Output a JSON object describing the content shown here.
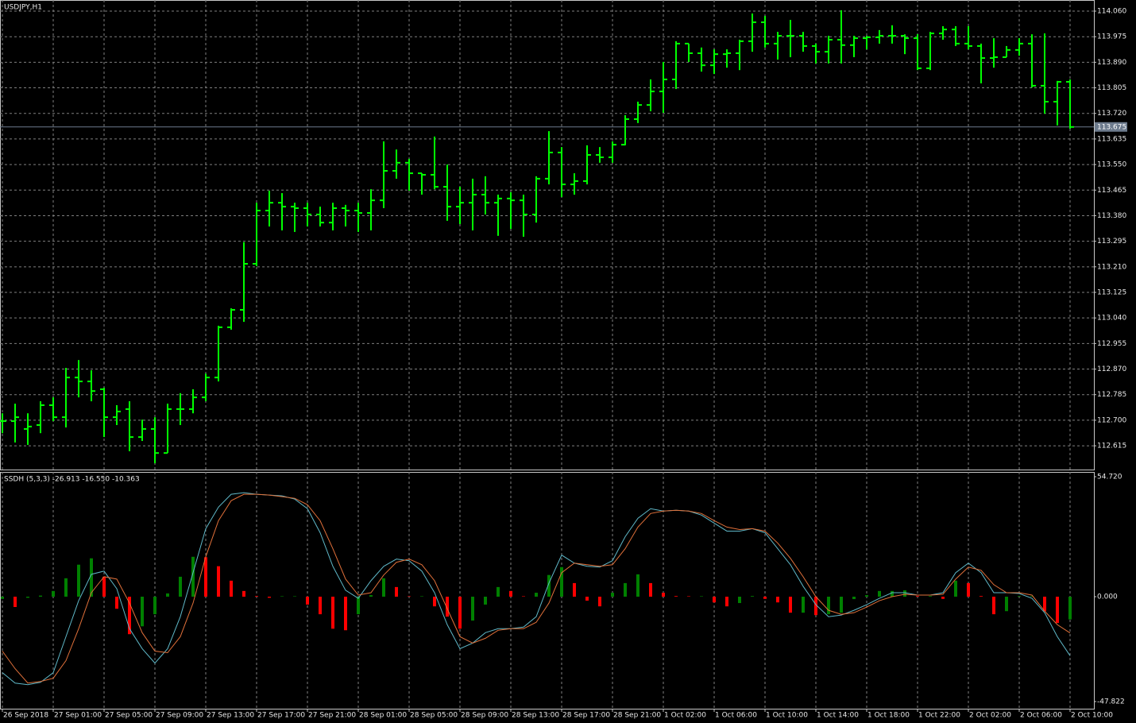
{
  "chart_data": [
    {
      "type": "ohlc",
      "title": "USDJPY,H1",
      "color": "#00ff00",
      "grid": true,
      "categories": [
        "26 Sep 2018",
        null,
        null,
        null,
        "27 Sep 01:00",
        null,
        null,
        null,
        "27 Sep 05:00",
        null,
        null,
        null,
        "27 Sep 09:00",
        null,
        null,
        null,
        "27 Sep 13:00",
        null,
        null,
        null,
        "27 Sep 17:00",
        null,
        null,
        null,
        "27 Sep 21:00",
        null,
        null,
        null,
        "28 Sep 01:00",
        null,
        null,
        null,
        "28 Sep 05:00",
        null,
        null,
        null,
        "28 Sep 09:00",
        null,
        null,
        null,
        "28 Sep 13:00",
        null,
        null,
        null,
        "28 Sep 17:00",
        null,
        null,
        null,
        "28 Sep 21:00",
        null,
        null,
        null,
        "1 Oct 02:00",
        null,
        null,
        null,
        "1 Oct 06:00",
        null,
        null,
        null,
        "1 Oct 10:00",
        null,
        null,
        null,
        "1 Oct 14:00",
        null,
        null,
        null,
        "1 Oct 18:00",
        null,
        null,
        null,
        "1 Oct 22:00",
        null,
        null,
        null,
        "2 Oct 02:00",
        null,
        null,
        null,
        "2 Oct 06:00",
        null,
        null,
        null,
        "2 Oct 10:00"
      ],
      "open": [
        112.697,
        112.697,
        112.671,
        112.684,
        112.75,
        112.71,
        112.842,
        112.829,
        112.803,
        112.71,
        112.737,
        112.644,
        112.671,
        112.591,
        112.737,
        112.737,
        112.776,
        112.842,
        113.009,
        113.067,
        113.22,
        113.397,
        113.423,
        113.41,
        113.405,
        113.384,
        113.357,
        113.405,
        113.397,
        113.389,
        113.431,
        113.529,
        113.556,
        113.521,
        113.516,
        113.476,
        113.41,
        113.423,
        113.45,
        113.423,
        113.437,
        113.431,
        113.384,
        113.503,
        113.59,
        113.484,
        113.495,
        113.582,
        113.574,
        113.616,
        113.701,
        113.748,
        113.793,
        113.833,
        113.952,
        113.92,
        113.88,
        113.917,
        113.92,
        113.96,
        114.023,
        113.952,
        113.978,
        113.978,
        113.944,
        113.925,
        113.965,
        113.947,
        113.97,
        113.973,
        113.978,
        113.978,
        113.97,
        113.87,
        113.986,
        113.999,
        113.952,
        113.944,
        113.904,
        113.907,
        113.931,
        113.952,
        113.812,
        113.759,
        113.825
      ],
      "high": [
        112.723,
        112.755,
        112.723,
        112.763,
        112.776,
        112.874,
        112.9,
        112.866,
        112.808,
        112.75,
        112.763,
        112.702,
        112.71,
        112.755,
        112.79,
        112.803,
        112.855,
        113.014,
        113.072,
        113.292,
        113.423,
        113.463,
        113.455,
        113.423,
        113.423,
        113.41,
        113.423,
        113.416,
        113.423,
        113.468,
        113.627,
        113.6,
        113.569,
        113.521,
        113.643,
        113.55,
        113.476,
        113.503,
        113.511,
        113.45,
        113.458,
        113.45,
        113.511,
        113.661,
        113.608,
        113.521,
        113.614,
        113.608,
        113.627,
        113.714,
        113.759,
        113.833,
        113.891,
        113.96,
        113.952,
        113.939,
        113.933,
        113.933,
        113.965,
        114.052,
        114.044,
        113.991,
        114.031,
        113.991,
        113.952,
        113.978,
        114.063,
        113.978,
        113.978,
        113.997,
        114.013,
        113.983,
        113.983,
        113.991,
        114.01,
        114.01,
        114.01,
        113.952,
        113.97,
        113.944,
        113.97,
        113.983,
        113.986,
        113.828,
        113.833
      ],
      "low": [
        112.657,
        112.626,
        112.618,
        112.657,
        112.697,
        112.676,
        112.776,
        112.763,
        112.644,
        112.684,
        112.597,
        112.631,
        112.557,
        112.591,
        112.684,
        112.723,
        112.763,
        112.829,
        113.001,
        113.027,
        113.212,
        113.344,
        113.331,
        113.326,
        113.344,
        113.344,
        113.331,
        113.344,
        113.326,
        113.331,
        113.405,
        113.503,
        113.463,
        113.45,
        113.468,
        113.363,
        113.352,
        113.331,
        113.384,
        113.313,
        113.336,
        113.31,
        113.357,
        113.484,
        113.442,
        113.45,
        113.484,
        113.556,
        113.556,
        113.614,
        113.688,
        113.727,
        113.722,
        113.801,
        113.891,
        113.859,
        113.851,
        113.872,
        113.864,
        113.925,
        113.939,
        113.899,
        113.907,
        113.925,
        113.886,
        113.886,
        113.886,
        113.907,
        113.933,
        113.952,
        113.952,
        113.917,
        113.864,
        113.864,
        113.965,
        113.944,
        113.933,
        113.82,
        113.872,
        113.907,
        113.912,
        113.806,
        113.719,
        113.68,
        113.669
      ],
      "close": [
        112.697,
        112.71,
        112.679,
        112.75,
        112.71,
        112.842,
        112.829,
        112.797,
        112.71,
        112.729,
        112.644,
        112.671,
        112.591,
        112.737,
        112.737,
        112.776,
        112.842,
        113.009,
        113.067,
        113.22,
        113.397,
        113.423,
        113.41,
        113.405,
        113.384,
        113.357,
        113.405,
        113.397,
        113.389,
        113.431,
        113.529,
        113.556,
        113.521,
        113.516,
        113.476,
        113.41,
        113.423,
        113.45,
        113.423,
        113.437,
        113.431,
        113.384,
        113.503,
        113.59,
        113.484,
        113.495,
        113.582,
        113.574,
        113.616,
        113.701,
        113.748,
        113.793,
        113.833,
        113.952,
        113.92,
        113.88,
        113.917,
        113.92,
        113.96,
        114.023,
        113.952,
        113.978,
        113.978,
        113.944,
        113.925,
        113.965,
        113.947,
        113.97,
        113.973,
        113.978,
        113.978,
        113.97,
        113.87,
        113.986,
        113.999,
        113.952,
        113.944,
        113.904,
        113.907,
        113.931,
        113.952,
        113.812,
        113.759,
        113.825,
        113.675
      ],
      "current_price": 113.675,
      "current_price_color": "#6d7b8d",
      "ylim": [
        112.536,
        114.097
      ],
      "yticks": [
        {
          "value": 114.06,
          "label": "114.060"
        },
        113.975,
        {
          "value": 113.89,
          "label": "113.890"
        },
        113.805,
        {
          "value": 113.72,
          "label": "113.720"
        },
        113.635,
        {
          "value": 113.55,
          "label": "113.550"
        },
        113.465,
        {
          "value": 113.38,
          "label": "113.380"
        },
        113.295,
        {
          "value": 113.21,
          "label": "113.210"
        },
        113.125,
        {
          "value": 113.04,
          "label": "113.040"
        },
        112.955,
        {
          "value": 112.87,
          "label": "112.870"
        },
        112.785,
        {
          "value": 112.7,
          "label": "112.700"
        },
        112.615
      ]
    },
    {
      "type": "oscillator",
      "title": "SSDH (5,3,3) -26.913 -16.550 -10.363",
      "histogram": {
        "up_color": "#008000",
        "down_color": "#ff0000",
        "values": [
          -1,
          -4.7,
          -0.5,
          0.5,
          2.6,
          8.4,
          14.6,
          17.5,
          9.1,
          -5.5,
          -17.1,
          -13.5,
          -8.0,
          1.5,
          9.1,
          18.2,
          18.0,
          13.9,
          7.3,
          2.6,
          0.3,
          -0.5,
          0.2,
          0.2,
          -3.6,
          -8.0,
          -14.6,
          -15.3,
          -8.0,
          0.7,
          8.4,
          4.4,
          0.2,
          0.2,
          -4.4,
          -9.1,
          -14.6,
          -10.9,
          -3.6,
          4.4,
          2.6,
          0.2,
          1.8,
          9.9,
          13.5,
          6.2,
          -1.8,
          -4.4,
          1.8,
          6.2,
          10.2,
          6.2,
          1.8,
          0.3,
          0.2,
          0.2,
          -2.6,
          -4.4,
          -2.9,
          0.3,
          -1.0,
          -2.6,
          -7.3,
          -7.3,
          -8.4,
          -8.0,
          -7.3,
          -1.1,
          0.7,
          2.6,
          2.6,
          2.9,
          0.3,
          0.3,
          -1.0,
          7.3,
          6.2,
          0.3,
          -8.0,
          -6.6,
          0.3,
          0.3,
          -6.6,
          -12.0,
          -10.363
        ]
      },
      "series": [
        {
          "color": "#5fb8c8",
          "values": [
            -34.66,
            -39.4,
            -40.13,
            -39.03,
            -34.66,
            -18.24,
            -1.82,
            10.21,
            11.67,
            3.65,
            -14.59,
            -23.71,
            -30.28,
            -23.71,
            -9.12,
            10.94,
            31.01,
            40.86,
            46.69,
            47.42,
            46.69,
            46.33,
            45.96,
            44.51,
            40.13,
            29.18,
            13.86,
            2.92,
            -0.73,
            7.3,
            13.86,
            17.15,
            16.42,
            11.67,
            1.82,
            -12.77,
            -23.71,
            -21.16,
            -16.42,
            -14.59,
            -14.59,
            -13.86,
            -9.12,
            6.2,
            18.97,
            15.32,
            13.86,
            13.5,
            16.42,
            27.36,
            35.75,
            40.13,
            39.03,
            39.4,
            39.03,
            37.21,
            33.56,
            29.91,
            29.91,
            31.01,
            29.18,
            21.89,
            14.59,
            4.74,
            -3.65,
            -9.12,
            -8.39,
            -6.2,
            -3.65,
            -0.73,
            1.82,
            1.82,
            0.73,
            0.73,
            1.82,
            10.94,
            15.32,
            10.94,
            1.82,
            1.82,
            1.46,
            -0.73,
            -7.3,
            -18.24,
            -26.913
          ]
        },
        {
          "color": "#e0703a",
          "values": [
            -24.81,
            -32.83,
            -39.4,
            -38.67,
            -37.21,
            -29.18,
            -14.59,
            1.82,
            9.12,
            8.03,
            -2.92,
            -16.42,
            -24.81,
            -25.54,
            -18.24,
            -2.92,
            18.24,
            34.66,
            43.78,
            46.69,
            46.69,
            46.33,
            45.6,
            44.87,
            41.95,
            34.66,
            21.89,
            8.03,
            0.73,
            1.82,
            9.85,
            15.69,
            17.15,
            14.59,
            7.3,
            -5.47,
            -18.24,
            -21.16,
            -18.97,
            -15.32,
            -14.59,
            -14.59,
            -11.67,
            -2.92,
            10.94,
            15.32,
            14.59,
            13.86,
            14.59,
            21.89,
            31.74,
            37.94,
            39.03,
            39.4,
            39.03,
            37.94,
            34.66,
            31.74,
            30.64,
            31.01,
            29.91,
            24.44,
            17.51,
            9.12,
            0,
            -6.2,
            -8.03,
            -7.3,
            -4.74,
            -1.82,
            0,
            1.09,
            0.73,
            0.73,
            1.09,
            8.03,
            13.5,
            12.04,
            5.47,
            1.82,
            1.82,
            0.73,
            -6.57,
            -12.77,
            -16.55
          ]
        }
      ],
      "ylim": [
        -47.822,
        54.72
      ],
      "yticks": [
        {
          "value": 54.72,
          "label": "54.720"
        },
        {
          "value": 0,
          "label": "0.000"
        },
        -47.822
      ]
    }
  ]
}
